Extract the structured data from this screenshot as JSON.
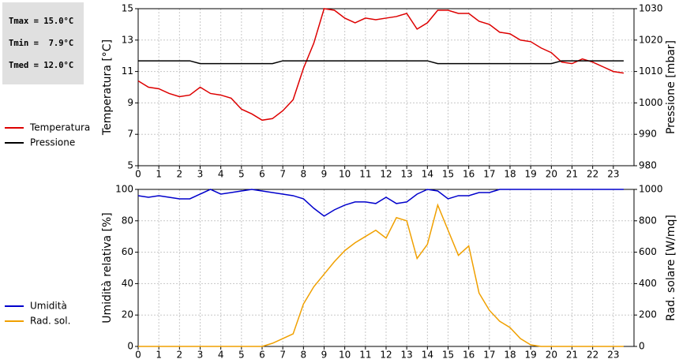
{
  "stats": [
    "Tmax = 15.0°C",
    "Tmin =  7.9°C",
    "Tmed = 12.0°C"
  ],
  "chart_data": [
    {
      "type": "line",
      "y_label": "Temperatura [°C]",
      "y2_label": "Pressione [mbar]",
      "x": [
        0,
        0.5,
        1,
        1.5,
        2,
        2.5,
        3,
        3.5,
        4,
        4.5,
        5,
        5.5,
        6,
        6.5,
        7,
        7.5,
        8,
        8.5,
        9,
        9.5,
        10,
        10.5,
        11,
        11.5,
        12,
        12.5,
        13,
        13.5,
        14,
        14.5,
        15,
        15.5,
        16,
        16.5,
        17,
        17.5,
        18,
        18.5,
        19,
        19.5,
        20,
        20.5,
        21,
        21.5,
        22,
        22.5,
        23,
        23.5
      ],
      "xlim": [
        0,
        24
      ],
      "xticks": [
        0,
        1,
        2,
        3,
        4,
        5,
        6,
        7,
        8,
        9,
        10,
        11,
        12,
        13,
        14,
        15,
        16,
        17,
        18,
        19,
        20,
        21,
        22,
        23
      ],
      "ylim": [
        5,
        15
      ],
      "yticks": [
        5,
        7,
        9,
        11,
        13,
        15
      ],
      "y2lim": [
        980,
        1030
      ],
      "y2ticks": [
        980,
        990,
        1000,
        1010,
        1020,
        1030
      ],
      "grid": true,
      "series": [
        {
          "name": "Temperatura",
          "color": "#dd0000",
          "values": [
            10.4,
            10.0,
            9.9,
            9.6,
            9.4,
            9.5,
            10.0,
            9.6,
            9.5,
            9.3,
            8.6,
            8.3,
            7.9,
            8.0,
            8.5,
            9.2,
            11.2,
            12.8,
            15.0,
            14.9,
            14.4,
            14.1,
            14.4,
            14.3,
            14.4,
            14.5,
            14.7,
            13.7,
            14.1,
            14.9,
            14.9,
            14.7,
            14.7,
            14.2,
            14.0,
            13.5,
            13.4,
            13.0,
            12.9,
            12.5,
            12.2,
            11.6,
            11.5,
            11.8,
            11.6,
            11.3,
            11.0,
            10.9
          ]
        },
        {
          "name": "Pressione",
          "color": "#000000",
          "axis": "y2",
          "values": [
            1013.4,
            1013.4,
            1013.4,
            1013.4,
            1013.4,
            1013.4,
            1012.5,
            1012.5,
            1012.5,
            1012.5,
            1012.5,
            1012.5,
            1012.5,
            1012.5,
            1013.4,
            1013.4,
            1013.4,
            1013.4,
            1013.4,
            1013.4,
            1013.4,
            1013.4,
            1013.4,
            1013.4,
            1013.4,
            1013.4,
            1013.4,
            1013.4,
            1013.4,
            1012.5,
            1012.5,
            1012.5,
            1012.5,
            1012.5,
            1012.5,
            1012.5,
            1012.5,
            1012.5,
            1012.5,
            1012.5,
            1012.5,
            1013.4,
            1013.4,
            1013.4,
            1013.4,
            1013.4,
            1013.4,
            1013.4
          ]
        }
      ]
    },
    {
      "type": "line",
      "y_label": "Umidità relativa [%]",
      "y2_label": "Rad. solare [W/mq]",
      "x": [
        0,
        0.5,
        1,
        1.5,
        2,
        2.5,
        3,
        3.5,
        4,
        4.5,
        5,
        5.5,
        6,
        6.5,
        7,
        7.5,
        8,
        8.5,
        9,
        9.5,
        10,
        10.5,
        11,
        11.5,
        12,
        12.5,
        13,
        13.5,
        14,
        14.5,
        15,
        15.5,
        16,
        16.5,
        17,
        17.5,
        18,
        18.5,
        19,
        19.5,
        20,
        20.5,
        21,
        21.5,
        22,
        22.5,
        23,
        23.5
      ],
      "xlim": [
        0,
        24
      ],
      "xticks": [
        0,
        1,
        2,
        3,
        4,
        5,
        6,
        7,
        8,
        9,
        10,
        11,
        12,
        13,
        14,
        15,
        16,
        17,
        18,
        19,
        20,
        21,
        22,
        23
      ],
      "ylim": [
        0,
        100
      ],
      "yticks": [
        0,
        20,
        40,
        60,
        80,
        100
      ],
      "y2lim": [
        0,
        1000
      ],
      "y2ticks": [
        0,
        200,
        400,
        600,
        800,
        1000
      ],
      "grid": true,
      "series": [
        {
          "name": "Umidità",
          "color": "#0000cc",
          "values": [
            96,
            95,
            96,
            95,
            94,
            94,
            97,
            100,
            97,
            98,
            99,
            100,
            99,
            98,
            97,
            96,
            94,
            88,
            83,
            87,
            90,
            92,
            92,
            91,
            95,
            91,
            92,
            97,
            100,
            99,
            94,
            96,
            96,
            98,
            98,
            100,
            100,
            100,
            100,
            100,
            100,
            100,
            100,
            100,
            100,
            100,
            100,
            100
          ]
        },
        {
          "name": "Rad. sol.",
          "color": "#f0a000",
          "axis": "y2",
          "values": [
            0,
            0,
            0,
            0,
            0,
            0,
            0,
            0,
            0,
            0,
            0,
            0,
            0,
            20,
            50,
            80,
            270,
            380,
            460,
            540,
            610,
            660,
            700,
            740,
            690,
            820,
            800,
            560,
            650,
            900,
            740,
            580,
            640,
            340,
            230,
            160,
            120,
            50,
            10,
            0,
            0,
            0,
            0,
            0,
            0,
            0,
            0,
            0
          ]
        }
      ]
    }
  ]
}
